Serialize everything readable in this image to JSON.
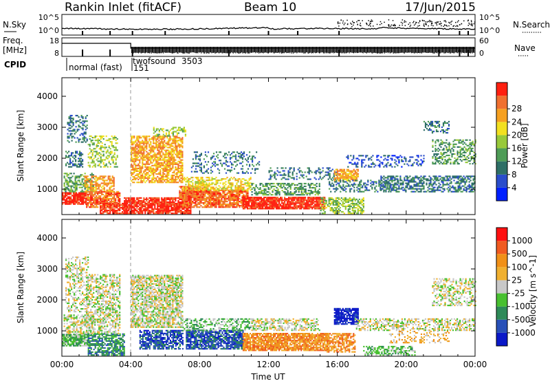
{
  "header": {
    "title": "Rankin Inlet (fitACF)",
    "beam": "Beam 10",
    "date": "17/Jun/2015"
  },
  "top_panels": {
    "nsky": {
      "left_label": "N.Sky",
      "right_label": "N.Search",
      "left_ticks": [
        "10^5",
        "10^0"
      ],
      "right_ticks": [
        "10^5",
        "10^0"
      ],
      "left_tick_values": [
        100000,
        1
      ],
      "right_tick_values": [
        100000,
        1
      ]
    },
    "freq": {
      "left_label_line1": "Freq.",
      "left_label_line2": "[MHz]",
      "right_label": "Nave",
      "left_ticks": [
        "18",
        "8"
      ],
      "left_tick_values": [
        18,
        8
      ],
      "right_ticks": [
        "60",
        "0"
      ],
      "right_tick_values": [
        60,
        0
      ]
    },
    "cpid": {
      "label": "CPID",
      "segments": [
        {
          "name": "normal (fast)",
          "code": "151",
          "start_hour": 0.0
        },
        {
          "name": "twofsound",
          "code": "3503",
          "start_hour": 4.0
        }
      ]
    }
  },
  "chart_data": [
    {
      "type": "heatmap",
      "name": "power",
      "ylabel": "Slant Range [km]",
      "xlabel": "",
      "xlim": [
        0,
        24
      ],
      "ylim": [
        180,
        4600
      ],
      "xticks": [
        "00:00",
        "04:00",
        "08:00",
        "12:00",
        "16:00",
        "20:00",
        "00:00"
      ],
      "yticks": [
        1000,
        2000,
        3000,
        4000
      ],
      "colorbar": {
        "label": "Power [dB]",
        "ticks": [
          "4",
          "8",
          "12",
          "16",
          "20",
          "24",
          "28"
        ],
        "colors": [
          "#0020ff",
          "#2a4dcb",
          "#2e6f66",
          "#4e9c56",
          "#98c93a",
          "#f2e020",
          "#f6a020",
          "#f07030",
          "#ff2010"
        ]
      },
      "regions": [
        {
          "t0": 0.0,
          "t1": 1.4,
          "r0": 500,
          "r1": 900,
          "level": 8,
          "density": 0.85
        },
        {
          "t0": 0.1,
          "t1": 1.8,
          "r0": 900,
          "r1": 1500,
          "level": 3,
          "density": 0.55
        },
        {
          "t0": 0.2,
          "t1": 1.2,
          "r0": 1700,
          "r1": 2200,
          "level": 2,
          "density": 0.45
        },
        {
          "t0": 0.3,
          "t1": 1.5,
          "r0": 2500,
          "r1": 3400,
          "level": 2,
          "density": 0.35
        },
        {
          "t0": 1.4,
          "t1": 3.4,
          "r0": 400,
          "r1": 900,
          "level": 7,
          "density": 0.8
        },
        {
          "t0": 1.3,
          "t1": 3.0,
          "r0": 900,
          "r1": 1400,
          "level": 6,
          "density": 0.6
        },
        {
          "t0": 1.5,
          "t1": 3.2,
          "r0": 1700,
          "r1": 2700,
          "level": 4,
          "density": 0.35
        },
        {
          "t0": 2.2,
          "t1": 3.8,
          "r0": 200,
          "r1": 550,
          "level": 8,
          "density": 0.75
        },
        {
          "t0": 4.0,
          "t1": 7.0,
          "r0": 1200,
          "r1": 2700,
          "level": 6,
          "density": 0.7
        },
        {
          "t0": 5.3,
          "t1": 7.2,
          "r0": 2700,
          "r1": 3000,
          "level": 4,
          "density": 0.45
        },
        {
          "t0": 3.6,
          "t1": 7.5,
          "r0": 200,
          "r1": 700,
          "level": 8,
          "density": 0.85
        },
        {
          "t0": 6.8,
          "t1": 8.3,
          "r0": 700,
          "r1": 1100,
          "level": 7,
          "density": 0.75
        },
        {
          "t0": 7.0,
          "t1": 10.8,
          "r0": 400,
          "r1": 950,
          "level": 7,
          "density": 0.85
        },
        {
          "t0": 7.0,
          "t1": 11.0,
          "r0": 950,
          "r1": 1400,
          "level": 5,
          "density": 0.55
        },
        {
          "t0": 7.5,
          "t1": 11.5,
          "r0": 1500,
          "r1": 2200,
          "level": 2,
          "density": 0.25
        },
        {
          "t0": 10.5,
          "t1": 15.3,
          "r0": 350,
          "r1": 750,
          "level": 8,
          "density": 0.9
        },
        {
          "t0": 11.0,
          "t1": 15.0,
          "r0": 800,
          "r1": 1200,
          "level": 3,
          "density": 0.5
        },
        {
          "t0": 12.0,
          "t1": 16.0,
          "r0": 1300,
          "r1": 1700,
          "level": 2,
          "density": 0.3
        },
        {
          "t0": 15.0,
          "t1": 17.5,
          "r0": 200,
          "r1": 700,
          "level": 4,
          "density": 0.55
        },
        {
          "t0": 15.8,
          "t1": 17.2,
          "r0": 1250,
          "r1": 1650,
          "level": 6,
          "density": 0.75
        },
        {
          "t0": 15.5,
          "t1": 19.5,
          "r0": 900,
          "r1": 1300,
          "level": 2,
          "density": 0.45
        },
        {
          "t0": 16.5,
          "t1": 21.0,
          "r0": 1700,
          "r1": 2100,
          "level": 1,
          "density": 0.3
        },
        {
          "t0": 18.5,
          "t1": 24.0,
          "r0": 900,
          "r1": 1400,
          "level": 2,
          "density": 0.5
        },
        {
          "t0": 21.5,
          "t1": 24.0,
          "r0": 1800,
          "r1": 2600,
          "level": 3,
          "density": 0.45
        },
        {
          "t0": 21.0,
          "t1": 22.5,
          "r0": 2800,
          "r1": 3200,
          "level": 2,
          "density": 0.35
        }
      ]
    },
    {
      "type": "heatmap",
      "name": "velocity",
      "ylabel": "Slant Range [km]",
      "xlabel": "Time UT",
      "xlim": [
        0,
        24
      ],
      "ylim": [
        180,
        4600
      ],
      "xticks": [
        "00:00",
        "04:00",
        "08:00",
        "12:00",
        "16:00",
        "20:00",
        "00:00"
      ],
      "yticks": [
        1000,
        2000,
        3000,
        4000
      ],
      "colorbar": {
        "label": "Velocity [m s^-1]",
        "ticks": [
          "1000",
          "500",
          "100",
          "25",
          "-25",
          "-100",
          "-500",
          "-1000"
        ],
        "colors": [
          "#0a18c8",
          "#2850b8",
          "#2e8a58",
          "#48c030",
          "#c8c8c8",
          "#f0b030",
          "#f09018",
          "#f05a20",
          "#ff1010"
        ]
      },
      "regions": [
        {
          "t0": 0.0,
          "t1": 1.6,
          "r0": 500,
          "r1": 900,
          "level": 3,
          "density": 0.85
        },
        {
          "t0": 0.1,
          "t1": 1.8,
          "r0": 900,
          "r1": 1500,
          "level": 4,
          "density": 0.55
        },
        {
          "t0": 0.2,
          "t1": 1.5,
          "r0": 1600,
          "r1": 3400,
          "level": 4,
          "density": 0.4
        },
        {
          "t0": 1.5,
          "t1": 3.6,
          "r0": 200,
          "r1": 900,
          "level": 2,
          "density": 0.7
        },
        {
          "t0": 1.4,
          "t1": 3.4,
          "r0": 900,
          "r1": 2800,
          "level": 4,
          "density": 0.55
        },
        {
          "t0": 4.0,
          "t1": 7.0,
          "r0": 1100,
          "r1": 2800,
          "level": 4,
          "density": 0.7
        },
        {
          "t0": 4.5,
          "t1": 7.0,
          "r0": 400,
          "r1": 1000,
          "level": 1,
          "density": 0.7
        },
        {
          "t0": 7.2,
          "t1": 10.5,
          "r0": 400,
          "r1": 1000,
          "level": 1,
          "density": 0.8
        },
        {
          "t0": 7.0,
          "t1": 11.0,
          "r0": 1000,
          "r1": 1400,
          "level": 3,
          "density": 0.45
        },
        {
          "t0": 10.5,
          "t1": 15.5,
          "r0": 350,
          "r1": 900,
          "level": 6,
          "density": 0.85
        },
        {
          "t0": 11.0,
          "t1": 15.0,
          "r0": 1000,
          "r1": 1400,
          "level": 4,
          "density": 0.55
        },
        {
          "t0": 15.8,
          "t1": 17.2,
          "r0": 1200,
          "r1": 1700,
          "level": 0,
          "density": 0.85
        },
        {
          "t0": 15.3,
          "t1": 17.0,
          "r0": 300,
          "r1": 900,
          "level": 6,
          "density": 0.6
        },
        {
          "t0": 17.5,
          "t1": 20.5,
          "r0": 200,
          "r1": 500,
          "level": 3,
          "density": 0.5
        },
        {
          "t0": 17.0,
          "t1": 24.0,
          "r0": 1000,
          "r1": 1400,
          "level": 4,
          "density": 0.5
        },
        {
          "t0": 21.5,
          "t1": 24.0,
          "r0": 1800,
          "r1": 2700,
          "level": 4,
          "density": 0.45
        },
        {
          "t0": 19.0,
          "t1": 22.5,
          "r0": 600,
          "r1": 1000,
          "level": 5,
          "density": 0.3
        }
      ]
    }
  ]
}
